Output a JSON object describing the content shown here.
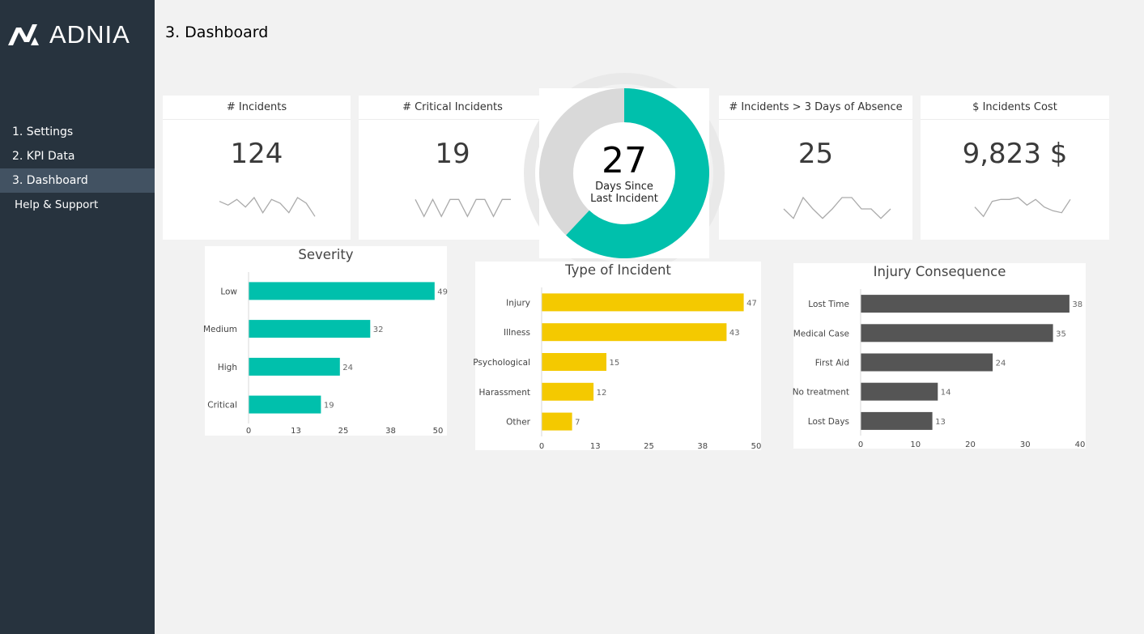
{
  "sidebar": {
    "logo_text": "ADNIA",
    "items": [
      {
        "label": "1. Settings"
      },
      {
        "label": "2. KPI Data"
      },
      {
        "label": "3. Dashboard"
      },
      {
        "label": "Help & Support"
      }
    ],
    "active_index": 2,
    "colors": {
      "background": "#27333e",
      "active": "#425262"
    }
  },
  "page": {
    "title": "3. Dashboard"
  },
  "kpis": [
    {
      "title": "# Incidents",
      "value": "124",
      "trend": [
        50,
        40,
        55,
        35,
        60,
        20,
        55,
        45,
        20,
        60,
        45,
        10
      ]
    },
    {
      "title": "# Critical Incidents",
      "value": "19",
      "trend": [
        55,
        10,
        55,
        10,
        55,
        55,
        10,
        55,
        55,
        10,
        55,
        55
      ]
    },
    {
      "title": "# Incidents > 3 Days of Absence",
      "value": "25",
      "trend": [
        30,
        5,
        60,
        30,
        5,
        30,
        60,
        60,
        30,
        30,
        5,
        30
      ]
    },
    {
      "title": "$ Incidents Cost",
      "value": "9,823 $",
      "trend": [
        35,
        10,
        50,
        55,
        55,
        60,
        40,
        55,
        35,
        25,
        20,
        55
      ]
    }
  ],
  "days_since": {
    "value": "27",
    "caption_line1": "Days Since",
    "caption_line2": "Last Incident",
    "fraction": 0.62,
    "colors": {
      "fill": "#00c0ac",
      "rest": "#d9d9d9"
    }
  },
  "chart_data": [
    {
      "type": "bar",
      "orientation": "horizontal",
      "title": "Severity",
      "categories": [
        "Low",
        "Medium",
        "High",
        "Critical"
      ],
      "values": [
        49,
        32,
        24,
        19
      ],
      "xlim": [
        0,
        50
      ],
      "ticks": [
        "0",
        "13",
        "25",
        "38",
        "50"
      ],
      "color": "#00c0ac"
    },
    {
      "type": "bar",
      "orientation": "horizontal",
      "title": "Type of Incident",
      "categories": [
        "Injury",
        "Illness",
        "Psychological",
        "Harassment",
        "Other"
      ],
      "values": [
        47,
        43,
        15,
        12,
        7
      ],
      "xlim": [
        0,
        50
      ],
      "ticks": [
        "0",
        "13",
        "25",
        "38",
        "50"
      ],
      "color": "#f4c900"
    },
    {
      "type": "bar",
      "orientation": "horizontal",
      "title": "Injury Consequence",
      "categories": [
        "Lost Time",
        "Medical Case",
        "First Aid",
        "No treatment",
        "Lost Days"
      ],
      "values": [
        38,
        35,
        24,
        14,
        13
      ],
      "xlim": [
        0,
        40
      ],
      "ticks": [
        "0",
        "10",
        "20",
        "30",
        "40"
      ],
      "color": "#555555"
    }
  ]
}
